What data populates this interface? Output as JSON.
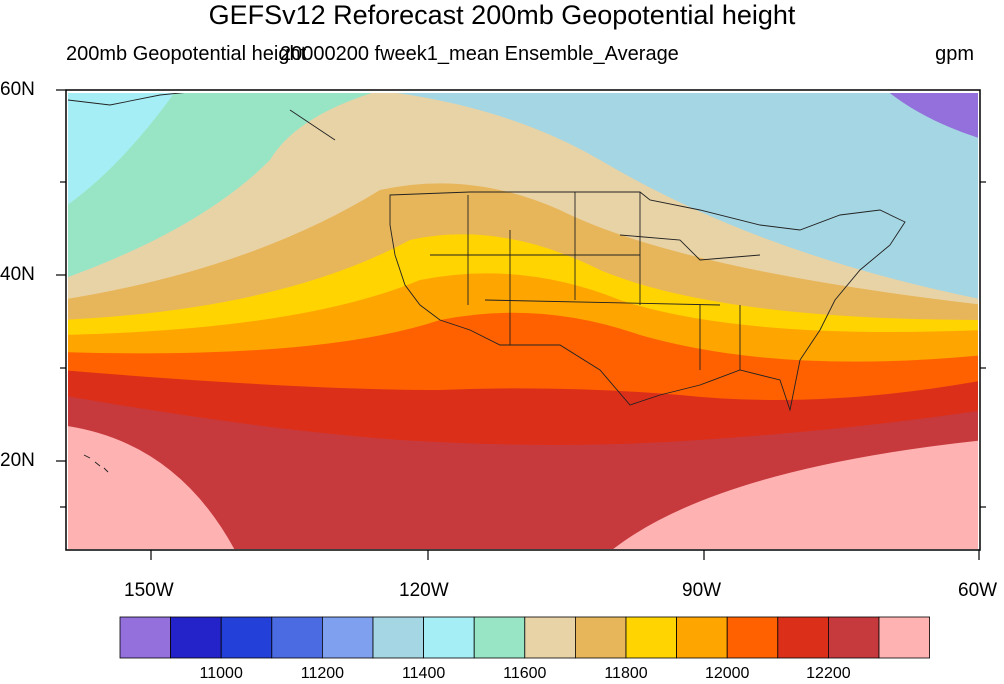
{
  "title": "GEFSv12 Reforecast 200mb Geopotential height",
  "subtitle_left": "200mb Geopotential height",
  "subtitle_center": "20000200 fweek1_mean Ensemble_Average",
  "units": "gpm",
  "lat_labels": [
    "60N",
    "40N",
    "20N"
  ],
  "lon_labels": [
    "150W",
    "120W",
    "90W",
    "60W"
  ],
  "colorbar": {
    "colors": [
      "#9370DB",
      "#2323C9",
      "#2341D9",
      "#4B6BE3",
      "#7FA0EF",
      "#A5D6E3",
      "#A6EEF5",
      "#98E5C6",
      "#E8D3A7",
      "#E8B65A",
      "#FFD400",
      "#FFA500",
      "#FF6100",
      "#DC2F1A",
      "#C63A3E",
      "#FFB2B2"
    ],
    "labels": [
      "11000",
      "11200",
      "11400",
      "11600",
      "11800",
      "12000",
      "12200"
    ]
  },
  "chart_data": {
    "type": "heatmap",
    "title": "GEFSv12 Reforecast 200mb Geopotential height",
    "variable": "200mb Geopotential height",
    "units": "gpm",
    "xlim": [
      -160,
      -60
    ],
    "ylim": [
      10,
      60
    ],
    "contour_levels": [
      10900,
      11000,
      11100,
      11200,
      11300,
      11400,
      11500,
      11600,
      11700,
      11800,
      11900,
      12000,
      12100,
      12200,
      12300
    ],
    "labeled_levels": [
      11000,
      11200,
      11400,
      11600,
      11800,
      12000,
      12200
    ],
    "band_colors": [
      "#9370DB",
      "#2323C9",
      "#2341D9",
      "#4B6BE3",
      "#7FA0EF",
      "#A5D6E3",
      "#A6EEF5",
      "#98E5C6",
      "#E8D3A7",
      "#E8B65A",
      "#FFD400",
      "#FFA500",
      "#FF6100",
      "#DC2F1A",
      "#C63A3E",
      "#FFB2B2"
    ]
  }
}
